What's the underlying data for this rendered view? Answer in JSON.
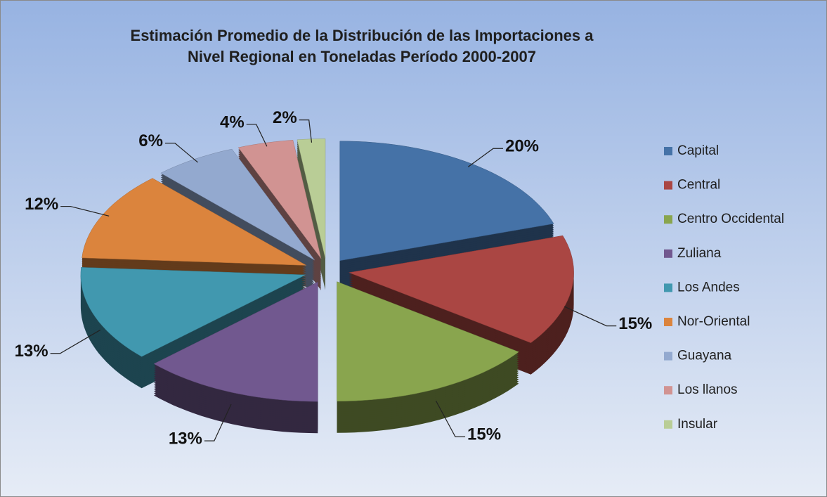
{
  "chart_data": {
    "type": "pie",
    "title": "Estimación Promedio de la Distribución de las Importaciones a Nivel Regional en Toneladas Período 2000-2007",
    "categories": [
      "Capital",
      "Central",
      "Centro Occidental",
      "Zuliana",
      "Los Andes",
      "Nor-Oriental",
      "Guayana",
      "Los llanos",
      "Insular"
    ],
    "values": [
      20,
      15,
      15,
      13,
      13,
      12,
      6,
      4,
      2
    ],
    "value_labels": [
      "20%",
      "15%",
      "15%",
      "13%",
      "13%",
      "12%",
      "6%",
      "4%",
      "2%"
    ],
    "colors": [
      "#4572a7",
      "#aa4643",
      "#89a54e",
      "#71588f",
      "#4198af",
      "#db843d",
      "#93a9cf",
      "#d19392",
      "#b9cd96"
    ],
    "legend": "right"
  }
}
